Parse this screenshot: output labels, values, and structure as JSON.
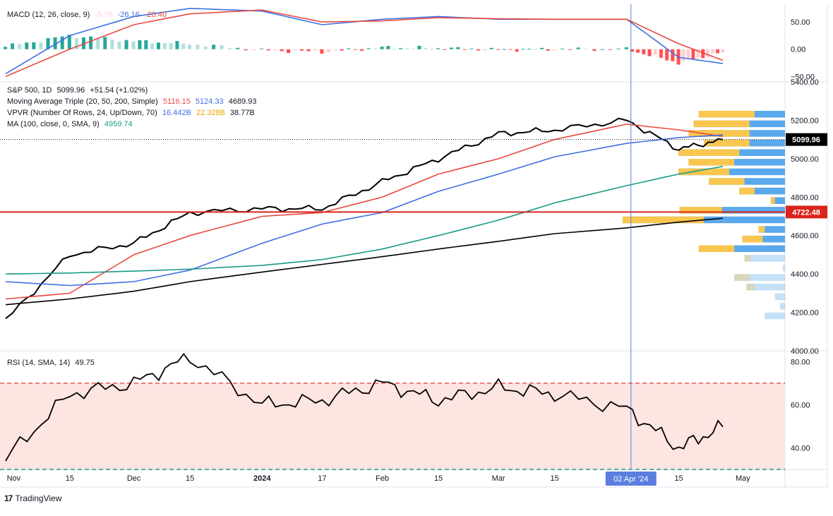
{
  "macd": {
    "title": "MACD (12, 26, close, 9)",
    "histogram": "-5.76",
    "macd": "-26.16",
    "signal": "-20.40",
    "yticks": [
      "50.00",
      "0.00",
      "−50.00"
    ]
  },
  "price": {
    "title": "S&P 500, 1D",
    "last": "5099.96",
    "change": "+51.54 (+1.02%)",
    "mat_title": "Moving Average Triple (20, 50, 200, Simple)",
    "mat_20": "5116.15",
    "mat_50": "5124.33",
    "mat_200": "4689.93",
    "vpvr_title": "VPVR (Number Of Rows, 24, Up/Down, 70)",
    "vpvr_up": "16.442B",
    "vpvr_down": "22.328B",
    "vpvr_total": "38.77B",
    "ma_title": "MA (100, close, 0, SMA, 9)",
    "ma_value": "4959.74",
    "price_badge": "5099.96",
    "level_badge": "4722.48",
    "yticks": [
      "5400.00",
      "5200.00",
      "5000.00",
      "4800.00",
      "4600.00",
      "4400.00",
      "4200.00",
      "4000.00"
    ]
  },
  "rsi": {
    "title": "RSI (14, SMA, 14)",
    "value": "49.75",
    "yticks": [
      "80.00",
      "60.00",
      "40.00"
    ]
  },
  "xaxis": {
    "labels": [
      "Nov",
      "15",
      "Dec",
      "15",
      "2024",
      "17",
      "Feb",
      "15",
      "Mar",
      "15",
      "15",
      "May"
    ],
    "crosshair_label": "02 Apr '24"
  },
  "brand": {
    "logo": "17",
    "name": "TradingView"
  },
  "colors": {
    "price": "#000000",
    "ma20": "#e9493f",
    "ma50": "#3f6ee6",
    "ma200": "#000000",
    "ma100": "#1b9a86",
    "level": "#d9251d",
    "macd": "#3f6ee6",
    "signal": "#e9493f",
    "hist_pos_strong": "#26a69a",
    "hist_pos_weak": "#b2dfdb",
    "hist_neg_strong": "#ff5252",
    "hist_neg_weak": "#ffcdd2",
    "vp_up": "#f9c74f",
    "vp_down": "#5aa9ec",
    "rsi_band": "#fde5e2",
    "crosshair": "#5b7fe0"
  },
  "chart_data": [
    {
      "type": "line",
      "title": "S&P 500, 1D",
      "ylim": [
        4000,
        5400
      ],
      "x": [
        "2023-10-30",
        "2023-11-15",
        "2023-12-01",
        "2023-12-15",
        "2024-01-02",
        "2024-01-17",
        "2024-02-01",
        "2024-02-15",
        "2024-03-01",
        "2024-03-15",
        "2024-04-02",
        "2024-04-15",
        "2024-04-26"
      ],
      "series": [
        {
          "name": "S&P 500",
          "values": [
            4160,
            4500,
            4560,
            4720,
            4740,
            4740,
            4880,
            5000,
            5130,
            5150,
            5200,
            5050,
            5100
          ]
        },
        {
          "name": "MA 20",
          "values": [
            4270,
            4300,
            4500,
            4600,
            4700,
            4720,
            4800,
            4920,
            5000,
            5100,
            5180,
            5150,
            5116
          ]
        },
        {
          "name": "MA 50",
          "values": [
            4360,
            4340,
            4360,
            4420,
            4560,
            4660,
            4720,
            4830,
            4920,
            5010,
            5080,
            5110,
            5124
          ]
        },
        {
          "name": "MA 100",
          "values": [
            4400,
            4405,
            4415,
            4425,
            4445,
            4475,
            4530,
            4600,
            4680,
            4770,
            4860,
            4920,
            4960
          ]
        },
        {
          "name": "MA 200",
          "values": [
            4240,
            4270,
            4310,
            4360,
            4410,
            4450,
            4490,
            4530,
            4570,
            4610,
            4640,
            4670,
            4690
          ]
        }
      ],
      "hline": 4722.48
    },
    {
      "type": "bar",
      "title": "VPVR (Number Of Rows, 24, Up/Down, 70)",
      "price_rows": [
        5230,
        5180,
        5130,
        5080,
        5030,
        4980,
        4930,
        4880,
        4830,
        4780,
        4730,
        4680,
        4630,
        4580,
        4530,
        4480,
        4430,
        4380,
        4330,
        4280,
        4230,
        4180
      ],
      "up": [
        0.55,
        0.55,
        0.6,
        0.45,
        0.6,
        0.45,
        0.5,
        0.35,
        0.15,
        0.04,
        0.42,
        0.8,
        0.06,
        0.2,
        0.35,
        0.06,
        0.0,
        0.15,
        0.08,
        0.0,
        0.0,
        0.0
      ],
      "down": [
        0.3,
        0.35,
        0.35,
        0.35,
        0.45,
        0.5,
        0.55,
        0.4,
        0.3,
        0.1,
        0.62,
        0.8,
        0.2,
        0.22,
        0.5,
        0.34,
        0.02,
        0.35,
        0.3,
        0.1,
        0.05,
        0.2
      ]
    },
    {
      "type": "line",
      "title": "MACD (12, 26, close, 9)",
      "ylim": [
        -60,
        80
      ],
      "x": [
        "2023-10-30",
        "2023-11-15",
        "2023-12-01",
        "2023-12-15",
        "2024-01-02",
        "2024-01-17",
        "2024-02-01",
        "2024-02-15",
        "2024-03-01",
        "2024-03-15",
        "2024-04-02",
        "2024-04-15",
        "2024-04-26"
      ],
      "series": [
        {
          "name": "MACD",
          "values": [
            -45,
            25,
            60,
            75,
            70,
            45,
            55,
            60,
            55,
            55,
            55,
            -15,
            -26.16
          ]
        },
        {
          "name": "Signal",
          "values": [
            -50,
            0,
            45,
            65,
            72,
            50,
            52,
            58,
            56,
            55,
            55,
            10,
            -20.4
          ]
        },
        {
          "name": "Histogram",
          "values": [
            5,
            25,
            15,
            10,
            -2,
            -5,
            3,
            2,
            -1,
            0,
            0,
            -25,
            -5.76
          ]
        }
      ]
    },
    {
      "type": "line",
      "title": "RSI (14, SMA, 14)",
      "ylim": [
        30,
        85
      ],
      "x": [
        "2023-10-30",
        "2023-11-15",
        "2023-12-01",
        "2023-12-15",
        "2024-01-02",
        "2024-01-17",
        "2024-02-01",
        "2024-02-15",
        "2024-03-01",
        "2024-03-15",
        "2024-04-02",
        "2024-04-15",
        "2024-04-26"
      ],
      "series": [
        {
          "name": "RSI",
          "values": [
            35,
            65,
            70,
            82,
            60,
            62,
            70,
            62,
            68,
            65,
            58,
            40,
            49.75
          ]
        }
      ],
      "band": [
        30,
        70
      ]
    }
  ]
}
